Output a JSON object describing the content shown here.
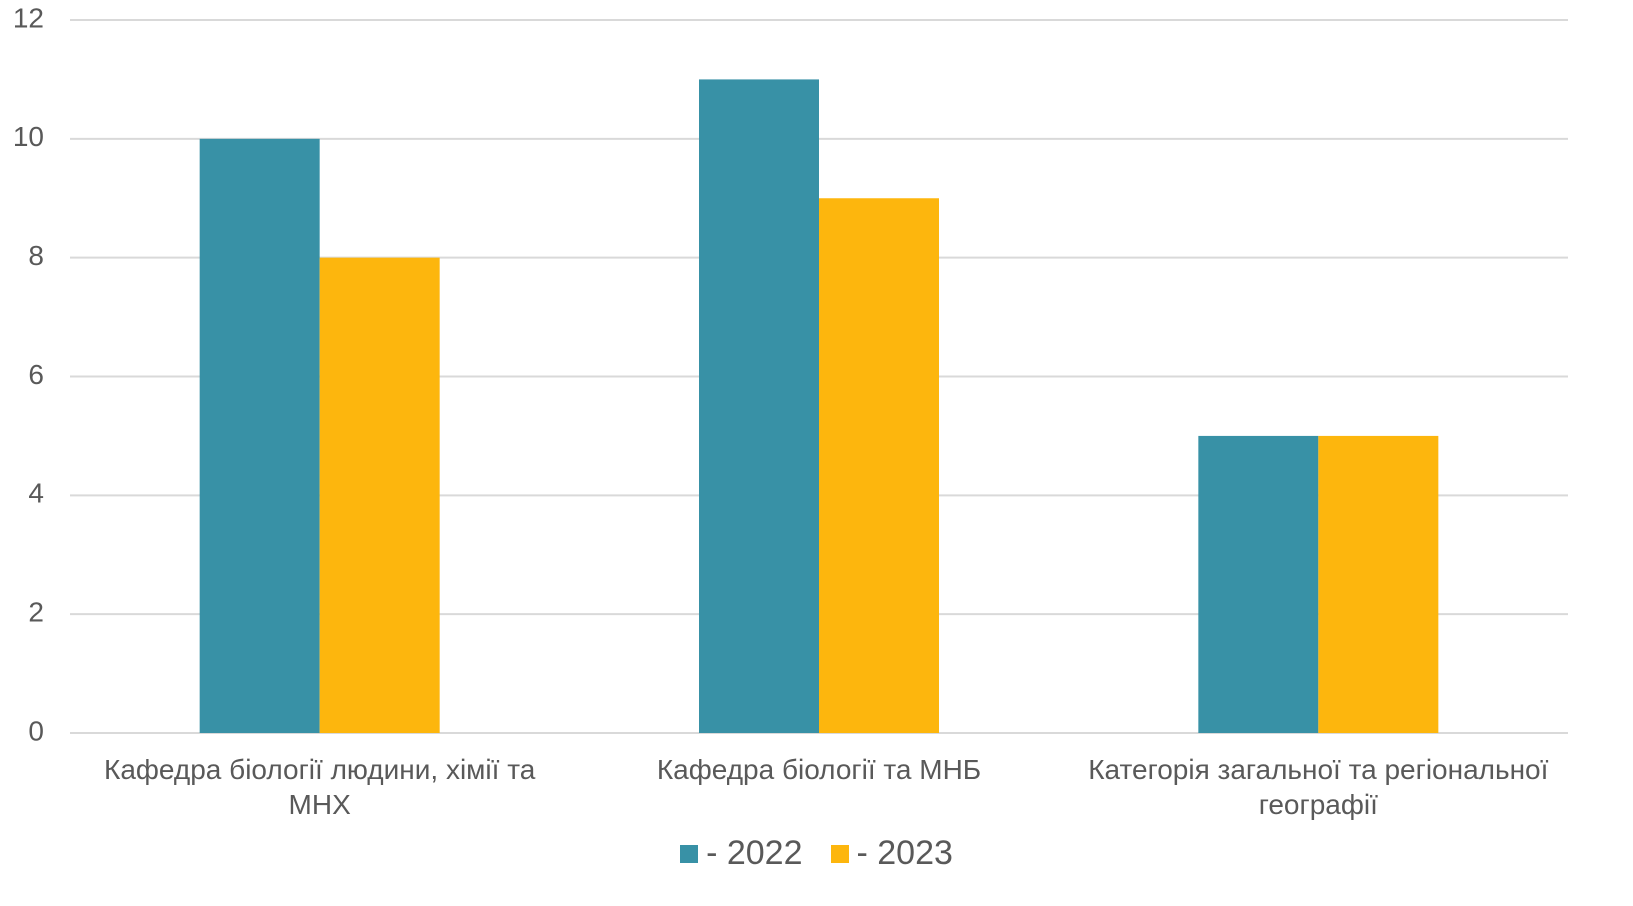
{
  "chart_data": {
    "type": "bar",
    "categories": [
      "Кафедра біології людини, хімії та МНХ",
      "Кафедра біології та МНБ",
      "Категорія загальної та регіональної географії"
    ],
    "series": [
      {
        "name": "- 2022",
        "color": "#3891a6",
        "values": [
          10,
          11,
          5
        ]
      },
      {
        "name": "- 2023",
        "color": "#fdb60d",
        "values": [
          8,
          9,
          5
        ]
      }
    ],
    "ylim": [
      0,
      12
    ],
    "yticks": [
      0,
      2,
      4,
      6,
      8,
      10,
      12
    ],
    "grid": true,
    "legend": "bottom"
  }
}
